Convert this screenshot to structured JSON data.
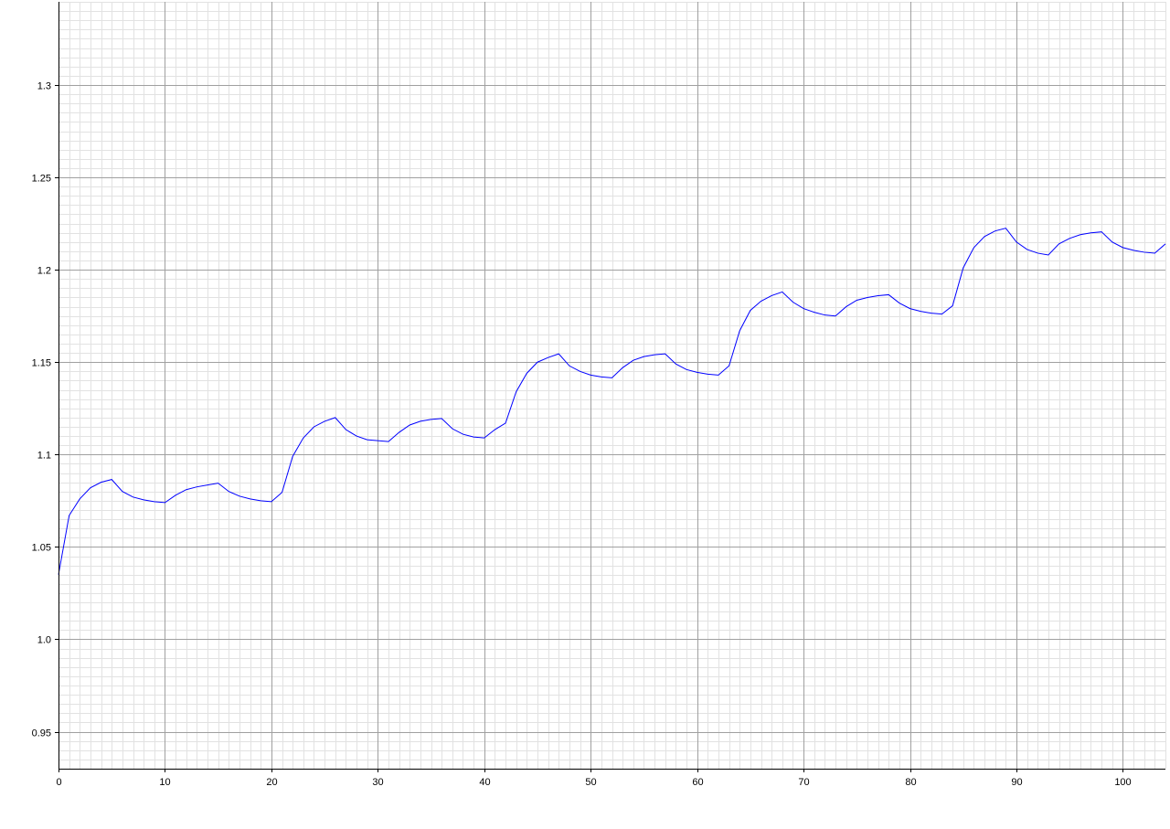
{
  "chart_data": {
    "type": "line",
    "title": "",
    "xlabel": "",
    "ylabel": "",
    "xlim": [
      0,
      104
    ],
    "ylim": [
      0.93,
      1.345
    ],
    "grid": true,
    "legend": "none",
    "x_ticks": [
      0,
      10,
      20,
      30,
      40,
      50,
      60,
      70,
      80,
      90,
      100
    ],
    "x_tick_labels": [
      "0",
      "10",
      "20",
      "30",
      "40",
      "50",
      "60",
      "70",
      "80",
      "90",
      "100"
    ],
    "y_ticks": [
      0.95,
      1.0,
      1.05,
      1.1,
      1.15,
      1.2,
      1.25,
      1.3
    ],
    "y_tick_labels": [
      "0.95",
      "1.0",
      "1.05",
      "1.1",
      "1.15",
      "1.2",
      "1.25",
      "1.3"
    ],
    "colors": {
      "series": "#0000ff",
      "grid_major": "#a0a0a0",
      "grid_minor": "#e2e2e2",
      "axis": "#000000"
    },
    "series": [
      {
        "x": [
          0,
          1,
          2,
          3,
          4,
          5,
          6,
          7,
          8,
          9,
          10,
          11,
          12,
          13,
          14,
          15,
          16,
          17,
          18,
          19,
          20,
          21,
          22,
          23,
          24,
          25,
          26,
          27,
          28,
          29,
          30,
          31,
          32,
          33,
          34,
          35,
          36,
          37,
          38,
          39,
          40,
          41,
          42,
          43,
          44,
          45,
          46,
          47,
          48,
          49,
          50,
          51,
          52,
          53,
          54,
          55,
          56,
          57,
          58,
          59,
          60,
          61,
          62,
          63,
          64,
          65,
          66,
          67,
          68,
          69,
          70,
          71,
          72,
          73,
          74,
          75,
          76,
          77,
          78,
          79,
          80,
          81,
          82,
          83,
          84,
          85,
          86,
          87,
          88,
          89,
          90,
          91,
          92,
          93,
          94,
          95,
          96,
          97,
          98,
          99,
          100,
          101,
          102,
          103,
          104
        ],
        "y": [
          1.035,
          1.067,
          1.076,
          1.082,
          1.085,
          1.0865,
          1.08,
          1.077,
          1.0755,
          1.0745,
          1.074,
          1.078,
          1.081,
          1.0825,
          1.0835,
          1.0845,
          1.08,
          1.0775,
          1.076,
          1.075,
          1.0745,
          1.0795,
          1.099,
          1.109,
          1.115,
          1.118,
          1.12,
          1.1135,
          1.11,
          1.108,
          1.1075,
          1.107,
          1.112,
          1.116,
          1.118,
          1.119,
          1.1195,
          1.114,
          1.111,
          1.1095,
          1.109,
          1.1135,
          1.117,
          1.134,
          1.144,
          1.15,
          1.1525,
          1.1545,
          1.148,
          1.145,
          1.143,
          1.142,
          1.1415,
          1.147,
          1.151,
          1.153,
          1.154,
          1.1545,
          1.149,
          1.146,
          1.1445,
          1.1435,
          1.143,
          1.148,
          1.167,
          1.178,
          1.183,
          1.186,
          1.188,
          1.1825,
          1.179,
          1.177,
          1.1755,
          1.175,
          1.18,
          1.1835,
          1.185,
          1.186,
          1.1865,
          1.182,
          1.179,
          1.1775,
          1.1765,
          1.176,
          1.1805,
          1.201,
          1.212,
          1.218,
          1.221,
          1.2225,
          1.215,
          1.211,
          1.209,
          1.208,
          1.214,
          1.217,
          1.219,
          1.22,
          1.2205,
          1.215,
          1.212,
          1.2105,
          1.2095,
          1.209,
          1.214
        ]
      }
    ]
  }
}
